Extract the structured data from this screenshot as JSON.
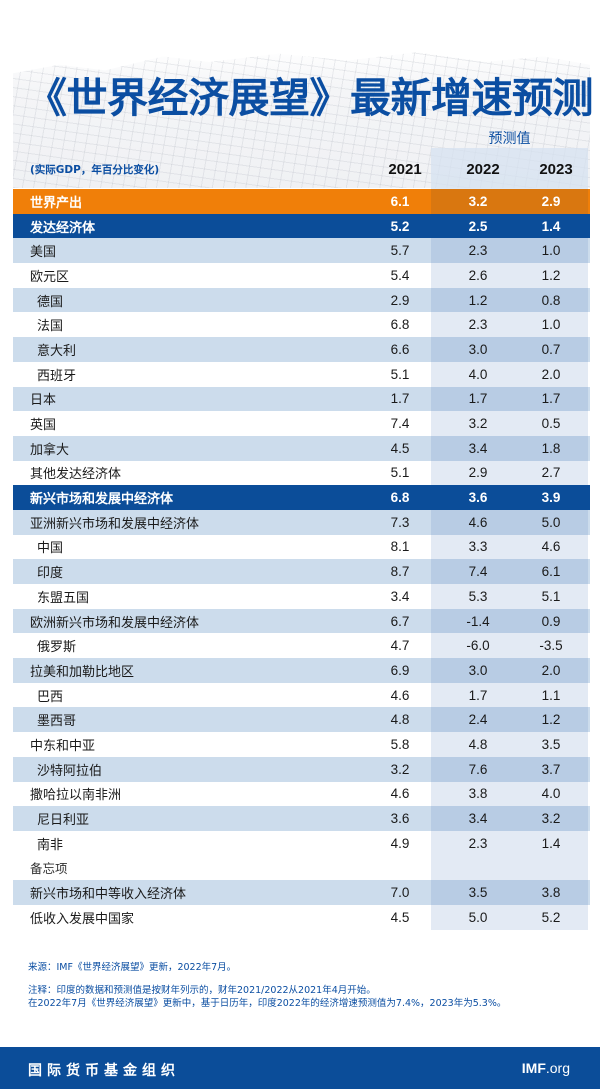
{
  "title": "《世界经济展望》最新增速预测",
  "header": {
    "forecast_label": "预测值",
    "units": "(实际GDP，年百分比变化)",
    "years": [
      "2021",
      "2022",
      "2023"
    ]
  },
  "rows": [
    {
      "label": "世界产出",
      "values": [
        "6.1",
        "3.2",
        "2.9"
      ],
      "style": "orange",
      "indent": false
    },
    {
      "label": "发达经济体",
      "values": [
        "5.2",
        "2.5",
        "1.4"
      ],
      "style": "blue",
      "indent": false
    },
    {
      "label": "美国",
      "values": [
        "5.7",
        "2.3",
        "1.0"
      ],
      "style": "light",
      "indent": false
    },
    {
      "label": "欧元区",
      "values": [
        "5.4",
        "2.6",
        "1.2"
      ],
      "style": "white",
      "indent": false
    },
    {
      "label": "德国",
      "values": [
        "2.9",
        "1.2",
        "0.8"
      ],
      "style": "light",
      "indent": true
    },
    {
      "label": "法国",
      "values": [
        "6.8",
        "2.3",
        "1.0"
      ],
      "style": "white",
      "indent": true
    },
    {
      "label": "意大利",
      "values": [
        "6.6",
        "3.0",
        "0.7"
      ],
      "style": "light",
      "indent": true
    },
    {
      "label": "西班牙",
      "values": [
        "5.1",
        "4.0",
        "2.0"
      ],
      "style": "white",
      "indent": true
    },
    {
      "label": "日本",
      "values": [
        "1.7",
        "1.7",
        "1.7"
      ],
      "style": "light",
      "indent": false
    },
    {
      "label": "英国",
      "values": [
        "7.4",
        "3.2",
        "0.5"
      ],
      "style": "white",
      "indent": false
    },
    {
      "label": "加拿大",
      "values": [
        "4.5",
        "3.4",
        "1.8"
      ],
      "style": "light",
      "indent": false
    },
    {
      "label": "其他发达经济体",
      "values": [
        "5.1",
        "2.9",
        "2.7"
      ],
      "style": "white",
      "indent": false
    },
    {
      "label": "新兴市场和发展中经济体",
      "values": [
        "6.8",
        "3.6",
        "3.9"
      ],
      "style": "blue",
      "indent": false
    },
    {
      "label": "亚洲新兴市场和发展中经济体",
      "values": [
        "7.3",
        "4.6",
        "5.0"
      ],
      "style": "light",
      "indent": false
    },
    {
      "label": "中国",
      "values": [
        "8.1",
        "3.3",
        "4.6"
      ],
      "style": "white",
      "indent": true
    },
    {
      "label": "印度",
      "values": [
        "8.7",
        "7.4",
        "6.1"
      ],
      "style": "light",
      "indent": true
    },
    {
      "label": "东盟五国",
      "values": [
        "3.4",
        "5.3",
        "5.1"
      ],
      "style": "white",
      "indent": true
    },
    {
      "label": "欧洲新兴市场和发展中经济体",
      "values": [
        "6.7",
        "-1.4",
        "0.9"
      ],
      "style": "light",
      "indent": false
    },
    {
      "label": "俄罗斯",
      "values": [
        "4.7",
        "-6.0",
        "-3.5"
      ],
      "style": "white",
      "indent": true
    },
    {
      "label": "拉美和加勒比地区",
      "values": [
        "6.9",
        "3.0",
        "2.0"
      ],
      "style": "light",
      "indent": false
    },
    {
      "label": "巴西",
      "values": [
        "4.6",
        "1.7",
        "1.1"
      ],
      "style": "white",
      "indent": true
    },
    {
      "label": "墨西哥",
      "values": [
        "4.8",
        "2.4",
        "1.2"
      ],
      "style": "light",
      "indent": true
    },
    {
      "label": "中东和中亚",
      "values": [
        "5.8",
        "4.8",
        "3.5"
      ],
      "style": "white",
      "indent": false
    },
    {
      "label": "沙特阿拉伯",
      "values": [
        "3.2",
        "7.6",
        "3.7"
      ],
      "style": "light",
      "indent": true
    },
    {
      "label": "撒哈拉以南非洲",
      "values": [
        "4.6",
        "3.8",
        "4.0"
      ],
      "style": "white",
      "indent": false
    },
    {
      "label": "尼日利亚",
      "values": [
        "3.6",
        "3.4",
        "3.2"
      ],
      "style": "light",
      "indent": true
    },
    {
      "label": "南非",
      "values": [
        "4.9",
        "2.3",
        "1.4"
      ],
      "style": "white",
      "indent": true
    },
    {
      "label": "备忘项",
      "values": [
        "",
        "",
        ""
      ],
      "style": "white memo",
      "indent": false
    },
    {
      "label": "新兴市场和中等收入经济体",
      "values": [
        "7.0",
        "3.5",
        "3.8"
      ],
      "style": "light",
      "indent": false
    },
    {
      "label": "低收入发展中国家",
      "values": [
        "4.5",
        "5.0",
        "5.2"
      ],
      "style": "white",
      "indent": false
    }
  ],
  "notes": {
    "source": "来源：IMF《世界经济展望》更新，2022年7月。",
    "note1": "注释：印度的数据和预测值是按财年列示的，财年2021/2022从2021年4月开始。",
    "note2": "在2022年7月《世界经济展望》更新中，基于日历年，印度2022年的经济增速预测值为7.4%，2023年为5.3%。"
  },
  "footer": {
    "org": "国际货币基金组织",
    "site_bold": "IMF",
    "site_rest": ".org"
  },
  "colors": {
    "brand_blue": "#0b4d99",
    "title_blue": "#0b4ea2",
    "orange": "#f07f09",
    "light_row": "#ccdcec",
    "forecast_shade": "#e3eaf4"
  }
}
